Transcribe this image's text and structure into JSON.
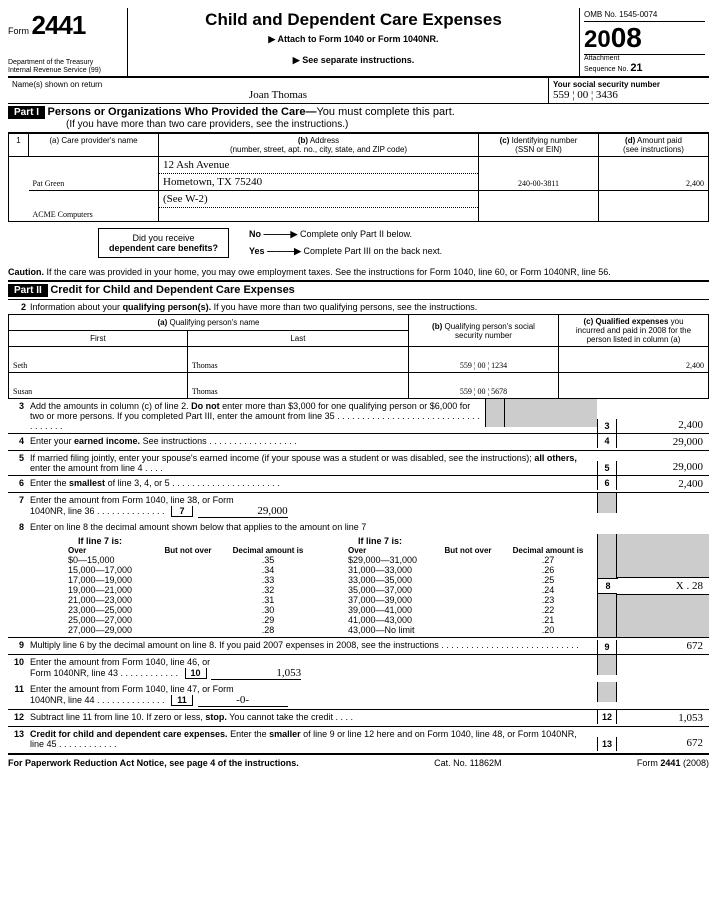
{
  "form_no_prefix": "Form",
  "form_no": "2441",
  "dept1": "Department of the Treasury",
  "dept2": "Internal Revenue Service    (99)",
  "title": "Child and Dependent Care Expenses",
  "sub1": "▶ Attach to Form 1040 or Form 1040NR.",
  "sub2": "▶ See separate instructions.",
  "omb": "OMB No. 1545-0074",
  "year_small": "20",
  "year_big": "08",
  "attach": "Attachment",
  "seq": "Sequence No. ",
  "seq_no": "21",
  "name_lbl": "Name(s) shown on return",
  "name_val": "Joan Thomas",
  "ssn_lbl": "Your social security number",
  "ssn_val": "559 ¦ 00 ¦ 3436",
  "part1": "Part I",
  "part1_title": "Persons or Organizations Who Provided the Care—",
  "part1_title2": "You must complete this part.",
  "part1_sub": "(If you have more than two care providers, see the instructions.)",
  "prov_hdr_1": "1",
  "prov_hdr_a": "(a) Care provider's name",
  "prov_hdr_b": "(b) Address\n(number, street, apt. no., city, state, and ZIP code)",
  "prov_hdr_c": "(c) Identifying number\n(SSN or EIN)",
  "prov_hdr_d": "(d) Amount paid\n(see instructions)",
  "prov1_name": "Pat Green",
  "prov1_addr1": "12 Ash Avenue",
  "prov1_addr2": "Hometown, TX 75240",
  "prov1_id": "240-00-3811",
  "prov1_amt": "2,400",
  "prov2_name": "ACME Computers",
  "prov2_addr": "(See W-2)",
  "benefits_q": "Did you receive",
  "benefits_q2": "dependent care benefits?",
  "no_lbl": "No",
  "no_txt": "Complete only Part II below.",
  "yes_lbl": "Yes",
  "yes_txt": "Complete Part III on the back next.",
  "caution_b": "Caution.",
  "caution": "If the care was provided in your home, you may owe employment taxes. See the instructions for Form 1040, line 60, or Form 1040NR, line 56.",
  "part2": "Part II",
  "part2_title": "Credit for Child and Dependent Care Expenses",
  "l2": "2",
  "l2_txt": "Information about your qualifying person(s). If you have more than two qualifying persons, see the instructions.",
  "qh_a": "(a) Qualifying person's name",
  "qh_first": "First",
  "qh_last": "Last",
  "qh_b": "(b) Qualifying person's social security number",
  "qh_c": "(c) Qualified expenses you incurred and paid in 2008 for the person listed in column (a)",
  "q1_first": "Seth",
  "q1_last": "Thomas",
  "q1_ssn": "559 ¦ 00 ¦ 1234",
  "q1_amt": "2,400",
  "q2_first": "Susan",
  "q2_last": "Thomas",
  "q2_ssn": "559 ¦ 00 ¦ 5678",
  "q2_amt": "",
  "l3": "3",
  "l3_txt": "Add the amounts in column (c) of line 2. Do not enter more than $3,000 for one qualifying person or $6,000 for two or more persons. If you completed Part III, enter the amount from line 35",
  "l3_amt": "2,400",
  "l4": "4",
  "l4_txt": "Enter your earned income. See instructions",
  "l4_amt": "29,000",
  "l5": "5",
  "l5_txt": "If married filing jointly, enter your spouse's earned income (if your spouse was a student or was disabled, see the instructions); all others, enter the amount from line 4",
  "l5_amt": "29,000",
  "l6": "6",
  "l6_txt": "Enter the smallest of line 3, 4, or 5",
  "l6_amt": "2,400",
  "l7": "7",
  "l7_txt": "Enter the amount from Form 1040, line 38, or Form 1040NR, line 36",
  "l7_box": "7",
  "l7_amt": "29,000",
  "l8": "8",
  "l8_txt": "Enter on line 8 the decimal amount shown below that applies to the amount on line 7",
  "l8_if": "If line 7 is:",
  "dec_h_over": "Over",
  "dec_h_notover": "But not over",
  "dec_h_dec": "Decimal amount is",
  "dl": [
    [
      "$0—15,000",
      ".35"
    ],
    [
      "15,000—17,000",
      ".34"
    ],
    [
      "17,000—19,000",
      ".33"
    ],
    [
      "19,000—21,000",
      ".32"
    ],
    [
      "21,000—23,000",
      ".31"
    ],
    [
      "23,000—25,000",
      ".30"
    ],
    [
      "25,000—27,000",
      ".29"
    ],
    [
      "27,000—29,000",
      ".28"
    ]
  ],
  "dr": [
    [
      "$29,000—31,000",
      ".27"
    ],
    [
      "31,000—33,000",
      ".26"
    ],
    [
      "33,000—35,000",
      ".25"
    ],
    [
      "35,000—37,000",
      ".24"
    ],
    [
      "37,000—39,000",
      ".23"
    ],
    [
      "39,000—41,000",
      ".22"
    ],
    [
      "41,000—43,000",
      ".21"
    ],
    [
      "43,000—No limit",
      ".20"
    ]
  ],
  "l8_amt": "X . 28",
  "l9": "9",
  "l9_txt": "Multiply line 6 by the decimal amount on line 8. If you paid 2007 expenses in 2008, see the instructions",
  "l9_amt": "672",
  "l10": "10",
  "l10_txt": "Enter the amount from Form 1040, line 46, or Form 1040NR, line 43",
  "l10_box": "10",
  "l10_amt": "1,053",
  "l11": "11",
  "l11_txt": "Enter the amount from Form 1040, line 47, or Form 1040NR, line 44",
  "l11_box": "11",
  "l11_amt": "-0-",
  "l12": "12",
  "l12_txt": "Subtract line 11 from line 10. If zero or less, stop. You cannot take the credit",
  "l12_amt": "1,053",
  "l13": "13",
  "l13_txt": "Credit for child and dependent care expenses. Enter the smaller of line 9 or line 12 here and on Form 1040, line 48, or Form 1040NR, line 45",
  "l13_amt": "672",
  "foot_l": "For Paperwork Reduction Act Notice, see page 4 of the instructions.",
  "foot_m": "Cat. No. 11862M",
  "foot_r1": "Form ",
  "foot_r2": "2441",
  "foot_r3": " (2008)"
}
